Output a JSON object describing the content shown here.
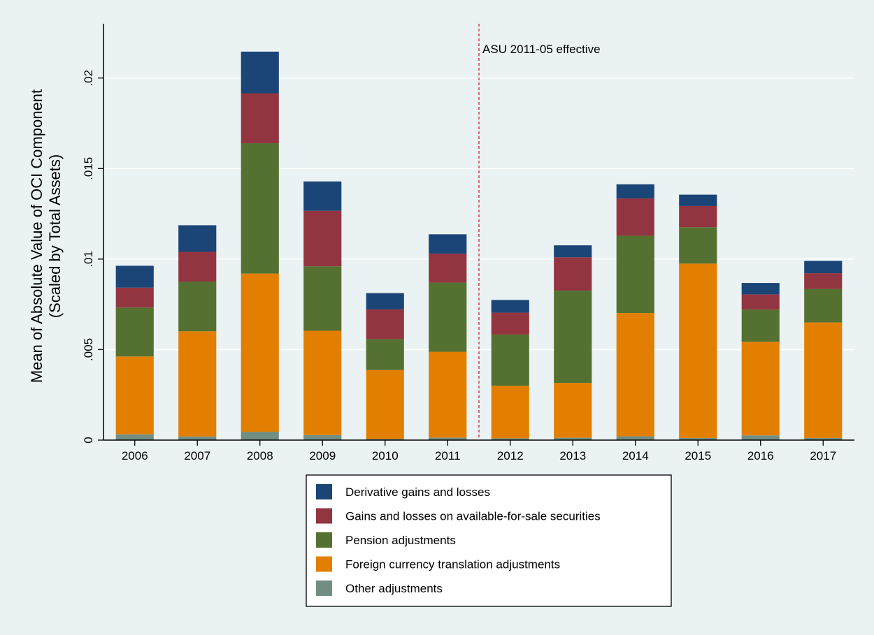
{
  "chart_data": {
    "type": "bar",
    "stacked": true,
    "categories": [
      "2006",
      "2007",
      "2008",
      "2009",
      "2010",
      "2011",
      "2012",
      "2013",
      "2014",
      "2015",
      "2016",
      "2017"
    ],
    "ylabel_line1": "Mean of Absolute Value of OCI Component",
    "ylabel_line2": "(Scaled by Total Assets)",
    "ylim": [
      0,
      0.023
    ],
    "yticks": [
      0,
      0.005,
      0.01,
      0.015,
      0.02
    ],
    "ytick_labels": [
      "0",
      ".005",
      ".01",
      ".015",
      ".02"
    ],
    "grid": true,
    "legend_position": "bottom",
    "annotation": {
      "text": "ASU 2011-05 effective",
      "between": [
        "2011",
        "2012"
      ],
      "color": "#c0283c"
    },
    "series": [
      {
        "name": "Other adjustments",
        "color": "#728e83",
        "values": [
          0.00032,
          0.0002,
          0.00046,
          0.00028,
          7e-05,
          0.00014,
          0.0001,
          0.00013,
          0.00021,
          0.00012,
          0.00026,
          0.00012
        ]
      },
      {
        "name": "Foreign currency translation adjustments",
        "color": "#e37f00",
        "values": [
          0.0043,
          0.00581,
          0.00874,
          0.00576,
          0.0038,
          0.00474,
          0.0029,
          0.00303,
          0.00681,
          0.00963,
          0.00517,
          0.00638
        ]
      },
      {
        "name": "Pension adjustments",
        "color": "#547131",
        "values": [
          0.0027,
          0.00275,
          0.0072,
          0.00356,
          0.00171,
          0.00382,
          0.00283,
          0.0051,
          0.00427,
          0.00201,
          0.00178,
          0.00185
        ]
      },
      {
        "name": "Gains and losses on available-for-sale securities",
        "color": "#923540",
        "values": [
          0.0011,
          0.00164,
          0.00276,
          0.00307,
          0.00164,
          0.0016,
          0.00121,
          0.00184,
          0.00206,
          0.00117,
          0.00084,
          0.00087
        ]
      },
      {
        "name": "Derivative gains and losses",
        "color": "#1b4576",
        "values": [
          0.00121,
          0.00147,
          0.0023,
          0.00162,
          0.0009,
          0.00107,
          0.0007,
          0.00066,
          0.00078,
          0.00063,
          0.00063,
          0.00068
        ]
      }
    ],
    "legend_order": [
      "Derivative gains and losses",
      "Gains and losses on available-for-sale securities",
      "Pension adjustments",
      "Foreign currency translation adjustments",
      "Other adjustments"
    ]
  }
}
